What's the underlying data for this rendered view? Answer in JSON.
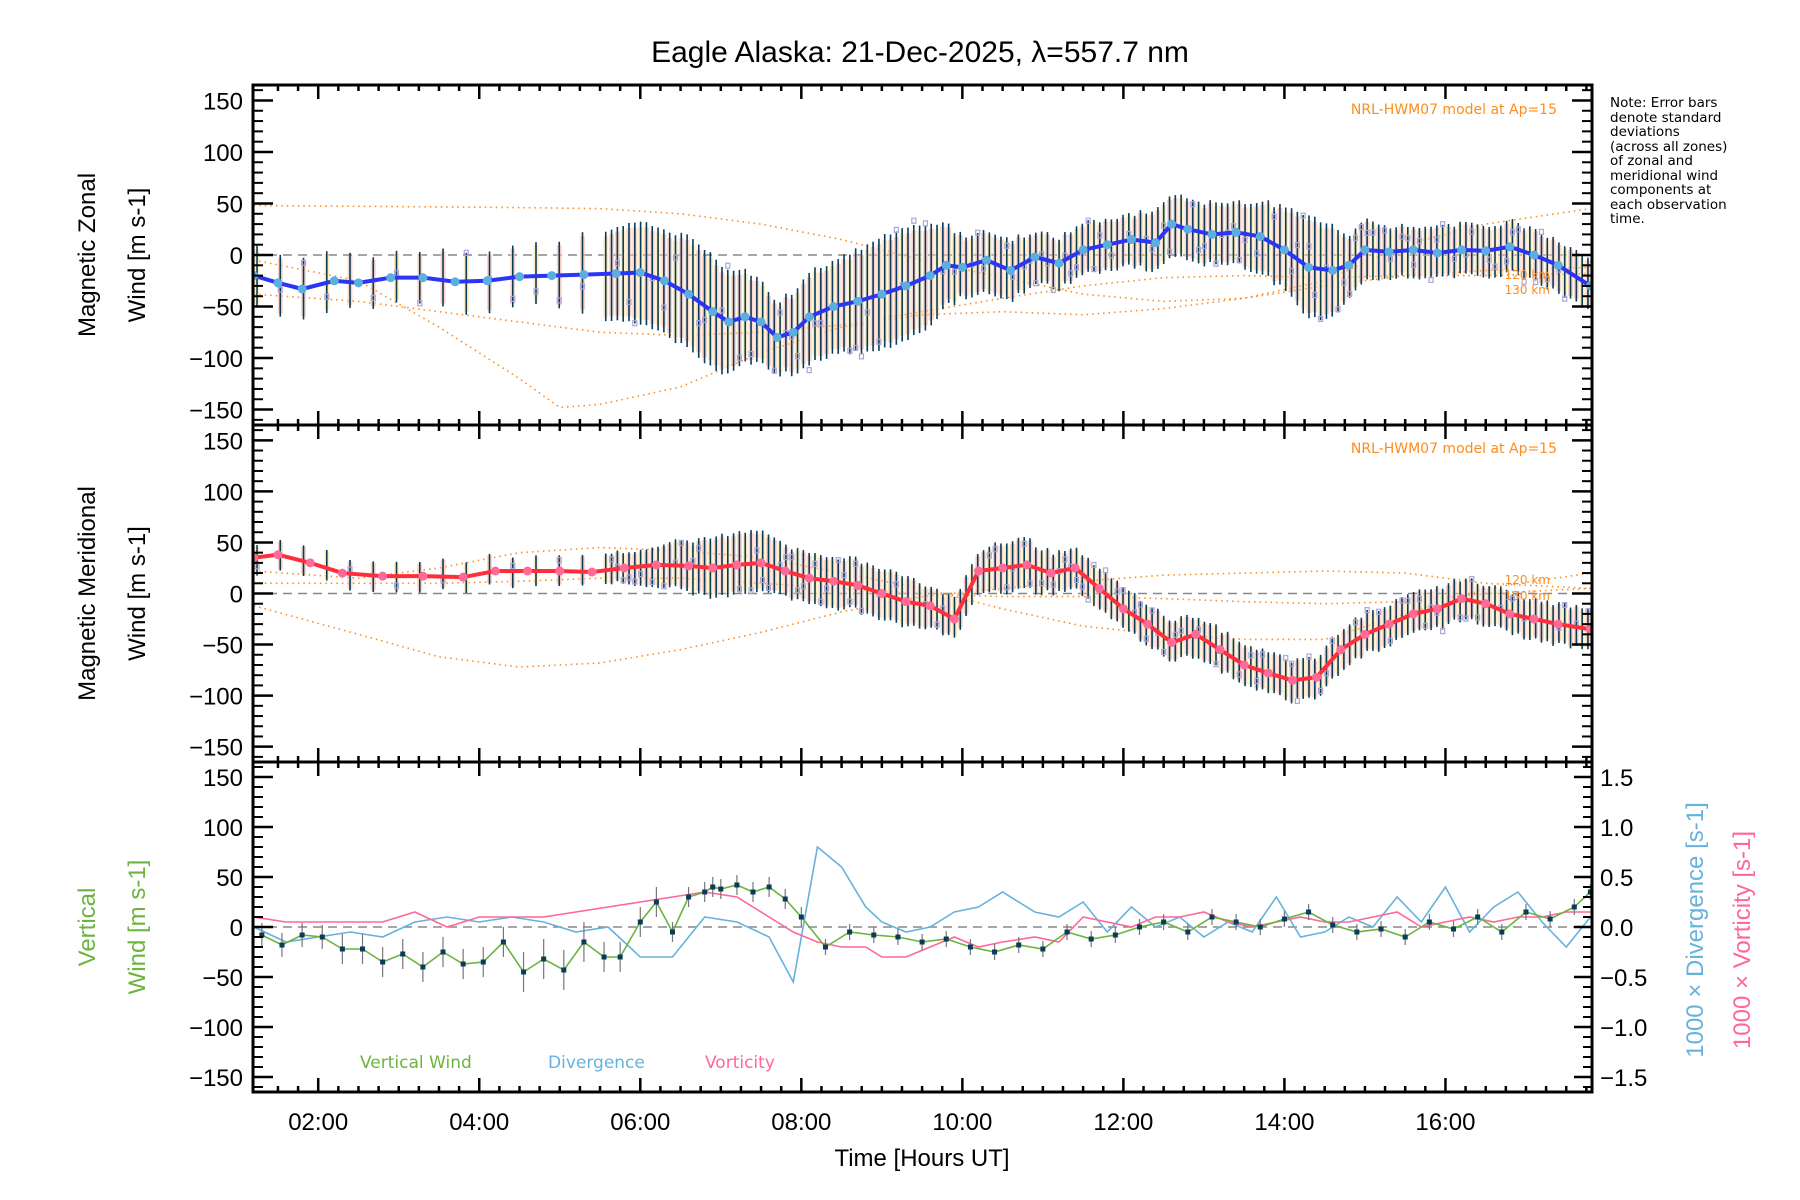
{
  "title": "Eagle Alaska: 21-Dec-2025, λ=557.7 nm",
  "note_lines": [
    "Note: Error bars",
    "denote standard",
    "deviations",
    "(across all zones)",
    "of zonal and",
    "meridional wind",
    "components at",
    "each observation",
    "time."
  ],
  "colors": {
    "zonal_line": "#2b35f5",
    "zonal_marker": "#5aaee0",
    "meridional_line": "#ff2e3c",
    "meridional_marker": "#ff6a96",
    "errorbar": "#0a3b57",
    "scatter": "#aaa6d8",
    "model": "#ff8c1a",
    "vertical": "#6db33f",
    "vertical_marker": "#0a3b57",
    "divergence": "#66b2de",
    "vorticity": "#ff6699",
    "zero_line": "#888888",
    "band": "#f9c5b5"
  },
  "chart_data": [
    {
      "type": "line",
      "panel": "zonal",
      "ylabel_line1": "Magnetic Zonal",
      "ylabel_line2": "Wind [m s",
      "ylabel_sup": "-1",
      "ylabel_close": "]",
      "ylim": [
        -165,
        165
      ],
      "yticks": [
        150,
        100,
        50,
        0,
        -50,
        -100,
        -150
      ],
      "xlim": [
        1.19,
        17.82
      ],
      "annotation": "NRL-HWM07 model at Ap=15",
      "model_labels": [
        "120 km",
        "130 km"
      ],
      "series": [
        {
          "name": "Magnetic Zonal Wind",
          "x": [
            1.2,
            1.5,
            1.8,
            2.2,
            2.5,
            2.9,
            3.3,
            3.7,
            4.1,
            4.5,
            4.9,
            5.3,
            5.7,
            6.0,
            6.3,
            6.6,
            6.9,
            7.1,
            7.3,
            7.5,
            7.7,
            7.9,
            8.1,
            8.4,
            8.7,
            9.0,
            9.3,
            9.6,
            9.8,
            10.0,
            10.3,
            10.6,
            10.9,
            11.2,
            11.5,
            11.8,
            12.1,
            12.4,
            12.6,
            12.8,
            13.1,
            13.4,
            13.7,
            14.0,
            14.3,
            14.6,
            14.8,
            15.0,
            15.3,
            15.6,
            15.9,
            16.2,
            16.5,
            16.8,
            17.1,
            17.4,
            17.8
          ],
          "y": [
            -20,
            -27,
            -33,
            -25,
            -27,
            -22,
            -22,
            -26,
            -25,
            -21,
            -20,
            -19,
            -18,
            -17,
            -25,
            -38,
            -55,
            -65,
            -60,
            -65,
            -80,
            -75,
            -60,
            -50,
            -45,
            -38,
            -30,
            -20,
            -10,
            -12,
            -5,
            -15,
            -2,
            -8,
            5,
            10,
            15,
            12,
            30,
            25,
            20,
            22,
            18,
            5,
            -12,
            -15,
            -10,
            5,
            3,
            5,
            2,
            5,
            4,
            8,
            0,
            -10,
            -30
          ],
          "err": [
            30,
            30,
            30,
            30,
            25,
            25,
            25,
            30,
            30,
            30,
            30,
            40,
            45,
            50,
            50,
            55,
            55,
            50,
            45,
            40,
            35,
            40,
            45,
            45,
            50,
            55,
            55,
            50,
            40,
            30,
            30,
            30,
            25,
            25,
            25,
            25,
            25,
            30,
            30,
            30,
            30,
            30,
            35,
            40,
            50,
            45,
            30,
            30,
            25,
            25,
            25,
            25,
            25,
            25,
            25,
            25,
            25
          ]
        },
        {
          "name": "HWM07 model 120 km",
          "x": [
            1.2,
            2.5,
            4.0,
            5.5,
            6.5,
            7.5,
            8.5,
            9.5,
            10.5,
            11.5,
            12.5,
            13.5,
            14.5,
            15.5,
            16.5,
            17.8
          ],
          "y": [
            -38,
            -45,
            -60,
            -75,
            -78,
            -75,
            -68,
            -55,
            -42,
            -30,
            -22,
            -20,
            -22,
            -20,
            -20,
            -18
          ]
        },
        {
          "name": "HWM07 model 130 km",
          "x": [
            1.2,
            2.5,
            3.5,
            4.5,
            5.0,
            5.5,
            6.5,
            7.5,
            8.5,
            9.5,
            10.5,
            11.5,
            12.5,
            13.5,
            14.5,
            15.5,
            16.5,
            17.8
          ],
          "y": [
            -5,
            -25,
            -70,
            -120,
            -148,
            -145,
            -128,
            -95,
            -70,
            -58,
            -55,
            -58,
            -52,
            -42,
            -30,
            -20,
            -15,
            -12
          ]
        },
        {
          "name": "HWM07 model upper",
          "x": [
            1.2,
            3.0,
            4.5,
            5.5,
            6.5,
            7.5,
            8.5,
            9.5,
            10.5,
            11.5,
            12.5,
            13.5,
            14.5,
            15.5,
            16.5,
            17.8
          ],
          "y": [
            48,
            47,
            46,
            45,
            40,
            30,
            15,
            -5,
            -22,
            -38,
            -45,
            -42,
            -25,
            10,
            30,
            45
          ]
        }
      ]
    },
    {
      "type": "line",
      "panel": "meridional",
      "ylabel_line1": "Magnetic Meridional",
      "ylabel_line2": "Wind [m s",
      "ylabel_sup": "-1",
      "ylabel_close": "]",
      "ylim": [
        -165,
        165
      ],
      "yticks": [
        150,
        100,
        50,
        0,
        -50,
        -100,
        -150
      ],
      "xlim": [
        1.19,
        17.82
      ],
      "annotation": "NRL-HWM07 model at Ap=15",
      "model_labels": [
        "120 km",
        "130 km"
      ],
      "series": [
        {
          "name": "Magnetic Meridional Wind",
          "x": [
            1.2,
            1.5,
            1.9,
            2.3,
            2.8,
            3.3,
            3.8,
            4.2,
            4.6,
            5.0,
            5.4,
            5.8,
            6.2,
            6.6,
            6.9,
            7.2,
            7.5,
            7.8,
            8.1,
            8.4,
            8.7,
            9.0,
            9.3,
            9.6,
            9.9,
            10.2,
            10.5,
            10.8,
            11.1,
            11.4,
            11.7,
            12.0,
            12.3,
            12.6,
            12.9,
            13.2,
            13.5,
            13.8,
            14.1,
            14.4,
            14.7,
            15.0,
            15.3,
            15.6,
            15.9,
            16.2,
            16.5,
            16.8,
            17.1,
            17.4,
            17.8
          ],
          "y": [
            35,
            38,
            30,
            20,
            17,
            17,
            16,
            22,
            22,
            22,
            21,
            25,
            28,
            27,
            25,
            28,
            30,
            22,
            15,
            12,
            8,
            0,
            -8,
            -12,
            -25,
            22,
            25,
            28,
            20,
            25,
            5,
            -15,
            -30,
            -48,
            -40,
            -55,
            -70,
            -78,
            -85,
            -82,
            -55,
            -40,
            -30,
            -20,
            -15,
            -5,
            -10,
            -20,
            -25,
            -30,
            -35
          ],
          "err": [
            15,
            15,
            15,
            15,
            15,
            15,
            15,
            15,
            15,
            15,
            15,
            15,
            20,
            25,
            30,
            30,
            30,
            25,
            25,
            25,
            25,
            25,
            25,
            20,
            20,
            20,
            25,
            25,
            20,
            20,
            20,
            20,
            20,
            20,
            20,
            20,
            20,
            20,
            20,
            20,
            20,
            20,
            20,
            20,
            20,
            20,
            20,
            20,
            20,
            20,
            20
          ]
        },
        {
          "name": "HWM07 model 120 km",
          "x": [
            1.2,
            2.5,
            3.5,
            4.5,
            5.5,
            6.5,
            7.5,
            8.5,
            9.5,
            10.5,
            11.5,
            12.5,
            13.5,
            14.5,
            15.5,
            16.5,
            17.8
          ],
          "y": [
            10,
            10,
            10,
            12,
            15,
            15,
            10,
            5,
            0,
            -3,
            -3,
            -5,
            -8,
            -10,
            -8,
            0,
            5
          ]
        },
        {
          "name": "HWM07 model 130 km",
          "x": [
            1.2,
            2.5,
            3.5,
            4.5,
            5.5,
            6.5,
            7.5,
            8.5,
            9.5,
            10.5,
            11.5,
            12.5,
            13.5,
            14.5,
            15.5,
            16.5,
            17.8
          ],
          "y": [
            -12,
            -40,
            -62,
            -72,
            -68,
            -55,
            -38,
            -18,
            -3,
            5,
            12,
            18,
            20,
            22,
            20,
            10,
            5
          ]
        },
        {
          "name": "HWM07 model upper",
          "x": [
            1.2,
            2.5,
            3.5,
            4.5,
            5.5,
            6.5,
            7.5,
            8.5,
            9.5,
            10.5,
            11.5,
            12.5,
            13.5,
            14.5,
            15.5,
            16.5,
            17.8
          ],
          "y": [
            22,
            15,
            25,
            40,
            45,
            42,
            35,
            20,
            5,
            -15,
            -32,
            -40,
            -45,
            -45,
            -20,
            5,
            20
          ]
        }
      ]
    },
    {
      "type": "line",
      "panel": "vertical",
      "ylabel_line1": "Vertical",
      "ylabel_line2": "Wind [m s",
      "ylabel_sup": "-1",
      "ylabel_close": "]",
      "ylim": [
        -165,
        165
      ],
      "yticks": [
        150,
        100,
        50,
        0,
        -50,
        -100,
        -150
      ],
      "y2lim": [
        -1.65,
        1.65
      ],
      "y2ticks": [
        "1.5",
        "1.0",
        "0.5",
        "0.0",
        "-0.5",
        "-1.0",
        "-1.5"
      ],
      "y2label_divergence": "1000 × Divergence [s",
      "y2label_vorticity": "1000 × Vorticity [s",
      "y2label_sup": "-1",
      "y2label_close": "]",
      "xlim": [
        1.19,
        17.82
      ],
      "xlabel": "Time [Hours UT]",
      "xticks": [
        "02:00",
        "04:00",
        "06:00",
        "08:00",
        "10:00",
        "12:00",
        "14:00",
        "16:00"
      ],
      "xtick_values": [
        2,
        4,
        6,
        8,
        10,
        12,
        14,
        16
      ],
      "legend": [
        "Vertical Wind",
        "Divergence",
        "Vorticity"
      ],
      "series": [
        {
          "name": "Vertical Wind",
          "x": [
            1.3,
            1.55,
            1.8,
            2.05,
            2.3,
            2.55,
            2.8,
            3.05,
            3.3,
            3.55,
            3.8,
            4.05,
            4.3,
            4.55,
            4.8,
            5.05,
            5.3,
            5.55,
            5.75,
            6.0,
            6.2,
            6.4,
            6.6,
            6.8,
            6.9,
            7.0,
            7.2,
            7.4,
            7.6,
            7.8,
            8.0,
            8.3,
            8.6,
            8.9,
            9.2,
            9.5,
            9.8,
            10.1,
            10.4,
            10.7,
            11.0,
            11.3,
            11.6,
            11.9,
            12.2,
            12.5,
            12.8,
            13.1,
            13.4,
            13.7,
            14.0,
            14.3,
            14.6,
            14.9,
            15.2,
            15.5,
            15.8,
            16.1,
            16.4,
            16.7,
            17.0,
            17.3,
            17.6,
            17.8
          ],
          "y": [
            -8,
            -18,
            -8,
            -10,
            -22,
            -22,
            -35,
            -27,
            -40,
            -25,
            -37,
            -35,
            -15,
            -45,
            -32,
            -43,
            -15,
            -30,
            -30,
            5,
            25,
            -5,
            30,
            35,
            40,
            38,
            42,
            35,
            40,
            28,
            10,
            -20,
            -5,
            -8,
            -10,
            -15,
            -12,
            -20,
            -25,
            -18,
            -22,
            -5,
            -12,
            -8,
            0,
            5,
            -5,
            10,
            5,
            0,
            8,
            15,
            2,
            -5,
            -2,
            -10,
            5,
            -2,
            10,
            -5,
            15,
            8,
            20,
            35
          ],
          "err": [
            12,
            12,
            12,
            12,
            15,
            15,
            15,
            15,
            15,
            15,
            15,
            15,
            15,
            20,
            20,
            20,
            20,
            15,
            15,
            15,
            15,
            10,
            10,
            10,
            10,
            10,
            10,
            10,
            10,
            10,
            10,
            8,
            8,
            8,
            8,
            8,
            8,
            8,
            8,
            8,
            8,
            8,
            8,
            8,
            8,
            8,
            8,
            8,
            8,
            8,
            8,
            8,
            8,
            8,
            8,
            8,
            8,
            8,
            8,
            8,
            8,
            8,
            8,
            8
          ]
        },
        {
          "name": "Divergence",
          "x": [
            1.2,
            1.6,
            2.0,
            2.4,
            2.8,
            3.2,
            3.6,
            4.0,
            4.4,
            4.8,
            5.2,
            5.6,
            6.0,
            6.4,
            6.8,
            7.2,
            7.6,
            7.9,
            8.2,
            8.5,
            8.8,
            9.0,
            9.3,
            9.6,
            9.9,
            10.2,
            10.5,
            10.9,
            11.2,
            11.5,
            11.8,
            12.1,
            12.4,
            12.7,
            13.0,
            13.3,
            13.6,
            13.9,
            14.2,
            14.5,
            14.8,
            15.1,
            15.4,
            15.7,
            16.0,
            16.3,
            16.6,
            16.9,
            17.2,
            17.5,
            17.8
          ],
          "y": [
            0.0,
            -0.15,
            -0.1,
            -0.05,
            -0.1,
            0.05,
            0.1,
            0.05,
            0.1,
            0.05,
            -0.05,
            0.0,
            -0.3,
            -0.3,
            0.1,
            0.05,
            -0.1,
            -0.55,
            0.8,
            0.6,
            0.2,
            0.05,
            -0.05,
            0.0,
            0.15,
            0.2,
            0.35,
            0.15,
            0.1,
            0.25,
            -0.05,
            0.2,
            0.0,
            0.1,
            -0.1,
            0.05,
            -0.05,
            0.3,
            -0.1,
            -0.05,
            0.1,
            0.0,
            0.3,
            0.05,
            0.4,
            -0.05,
            0.2,
            0.35,
            0.05,
            -0.2,
            0.1
          ],
          "scale": "right-axis"
        },
        {
          "name": "Vorticity",
          "x": [
            1.2,
            1.6,
            2.0,
            2.4,
            2.8,
            3.2,
            3.6,
            4.0,
            4.4,
            4.8,
            5.2,
            5.6,
            6.0,
            6.4,
            6.8,
            7.2,
            7.6,
            7.9,
            8.2,
            8.5,
            8.8,
            9.0,
            9.3,
            9.6,
            9.9,
            10.2,
            10.5,
            10.9,
            11.2,
            11.5,
            11.8,
            12.1,
            12.4,
            12.7,
            13.0,
            13.3,
            13.6,
            13.9,
            14.2,
            14.5,
            14.8,
            15.1,
            15.4,
            15.7,
            16.0,
            16.3,
            16.6,
            16.9,
            17.2,
            17.5,
            17.8
          ],
          "y": [
            0.1,
            0.05,
            0.05,
            0.05,
            0.05,
            0.15,
            0.0,
            0.1,
            0.1,
            0.1,
            0.15,
            0.2,
            0.25,
            0.3,
            0.35,
            0.3,
            0.1,
            -0.05,
            -0.15,
            -0.2,
            -0.2,
            -0.3,
            -0.3,
            -0.2,
            -0.1,
            -0.2,
            -0.15,
            -0.1,
            -0.15,
            0.1,
            0.05,
            0.0,
            0.1,
            0.1,
            0.15,
            0.05,
            0.0,
            0.05,
            0.1,
            0.05,
            0.05,
            0.1,
            0.15,
            0.0,
            0.05,
            0.1,
            0.05,
            0.1,
            0.1,
            0.15,
            0.15
          ],
          "scale": "right-axis"
        }
      ]
    }
  ]
}
